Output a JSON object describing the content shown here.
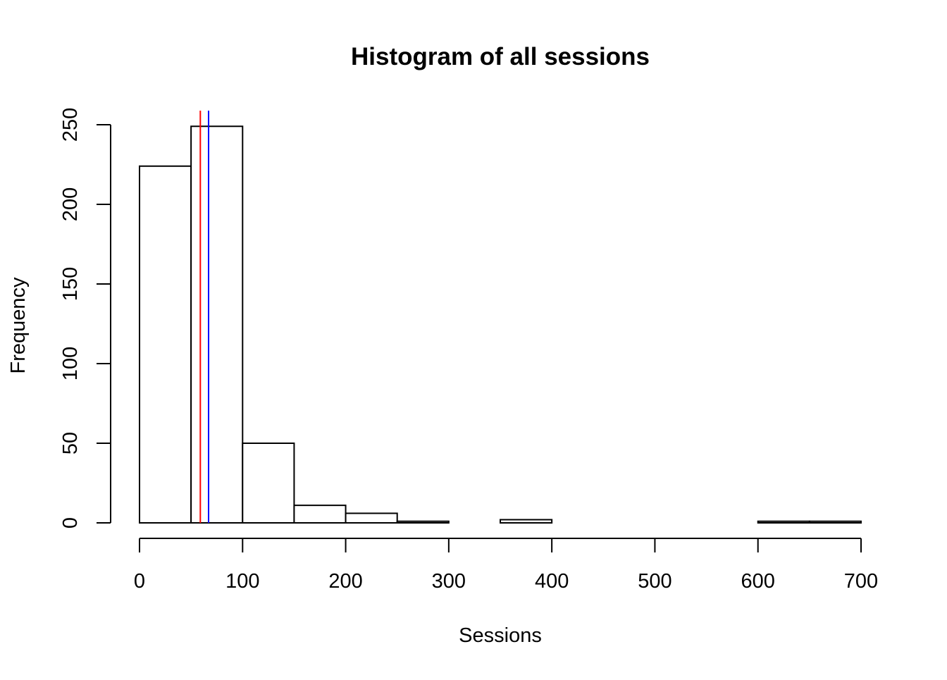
{
  "chart_data": {
    "type": "bar",
    "title": "Histogram of all sessions",
    "xlabel": "Sessions",
    "ylabel": "Frequency",
    "bin_edges": [
      0,
      50,
      100,
      150,
      200,
      250,
      300,
      350,
      400,
      450,
      500,
      550,
      600,
      650,
      700
    ],
    "values": [
      224,
      249,
      50,
      11,
      6,
      1,
      0,
      2,
      0,
      0,
      0,
      0,
      1,
      1
    ],
    "xlim": [
      0,
      700
    ],
    "ylim": [
      0,
      250
    ],
    "x_ticks": [
      0,
      100,
      200,
      300,
      400,
      500,
      600,
      700
    ],
    "x_tick_labels": [
      "0",
      "100",
      "200",
      "300",
      "400",
      "500",
      "600",
      "700"
    ],
    "y_ticks": [
      0,
      50,
      100,
      150,
      200,
      250
    ],
    "y_tick_labels": [
      "0",
      "50",
      "100",
      "150",
      "200",
      "250"
    ],
    "grid": false,
    "vertical_lines": [
      {
        "value": 59,
        "color": "#ff0000"
      },
      {
        "value": 67,
        "color": "#0000ff"
      }
    ]
  }
}
